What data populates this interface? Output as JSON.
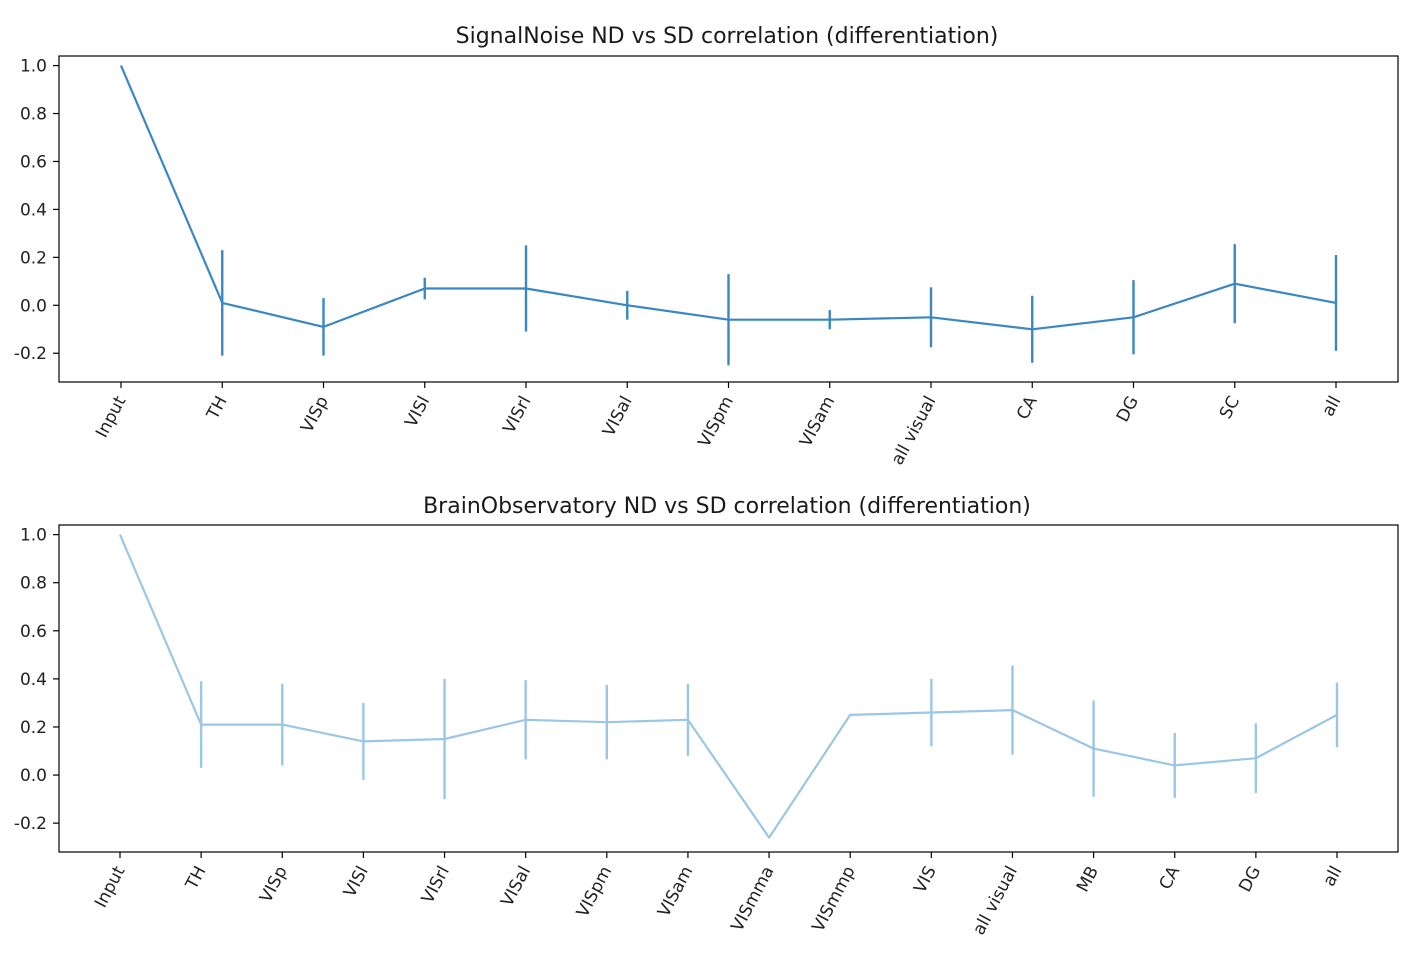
{
  "chart_data": [
    {
      "type": "line",
      "title": "SignalNoise ND vs SD correlation (differentiation)",
      "xlabel": "",
      "ylabel": "",
      "ylim": [
        -0.32,
        1.04
      ],
      "yticks": [
        1.0,
        0.8,
        0.6,
        0.4,
        0.2,
        0.0,
        -0.2
      ],
      "ytick_labels": [
        "1.0",
        "0.8",
        "0.6",
        "0.4",
        "0.2",
        "0.0",
        "-0.2"
      ],
      "categories": [
        "Input",
        "TH",
        "VISp",
        "VISl",
        "VISrl",
        "VISal",
        "VISpm",
        "VISam",
        "all visual",
        "CA",
        "DG",
        "SC",
        "all"
      ],
      "series": [
        {
          "values": [
            1.0,
            0.01,
            -0.09,
            0.07,
            0.07,
            0.0,
            -0.06,
            -0.06,
            -0.05,
            -0.1,
            -0.05,
            0.09,
            0.01
          ],
          "error": [
            0.0,
            0.22,
            0.12,
            0.045,
            0.18,
            0.06,
            0.19,
            0.04,
            0.125,
            0.14,
            0.155,
            0.165,
            0.2
          ],
          "color": "#3a87c4"
        }
      ],
      "grid": false
    },
    {
      "type": "line",
      "title": "BrainObservatory ND vs SD correlation (differentiation)",
      "xlabel": "",
      "ylabel": "",
      "ylim": [
        -0.32,
        1.04
      ],
      "yticks": [
        1.0,
        0.8,
        0.6,
        0.4,
        0.2,
        0.0,
        -0.2
      ],
      "ytick_labels": [
        "1.0",
        "0.8",
        "0.6",
        "0.4",
        "0.2",
        "0.0",
        "-0.2"
      ],
      "categories": [
        "Input",
        "TH",
        "VISp",
        "VISl",
        "VISrl",
        "VISal",
        "VISpm",
        "VISam",
        "VISmma",
        "VISmmp",
        "VIS",
        "all visual",
        "MB",
        "CA",
        "DG",
        "all"
      ],
      "series": [
        {
          "values": [
            1.0,
            0.21,
            0.21,
            0.14,
            0.15,
            0.23,
            0.22,
            0.23,
            -0.26,
            0.25,
            0.26,
            0.27,
            0.11,
            0.04,
            0.07,
            0.25
          ],
          "error": [
            0.0,
            0.18,
            0.17,
            0.16,
            0.25,
            0.165,
            0.155,
            0.15,
            0.0,
            0.0,
            0.14,
            0.185,
            0.2,
            0.135,
            0.145,
            0.135
          ],
          "color": "#9cc6e6"
        }
      ],
      "grid": false
    }
  ]
}
